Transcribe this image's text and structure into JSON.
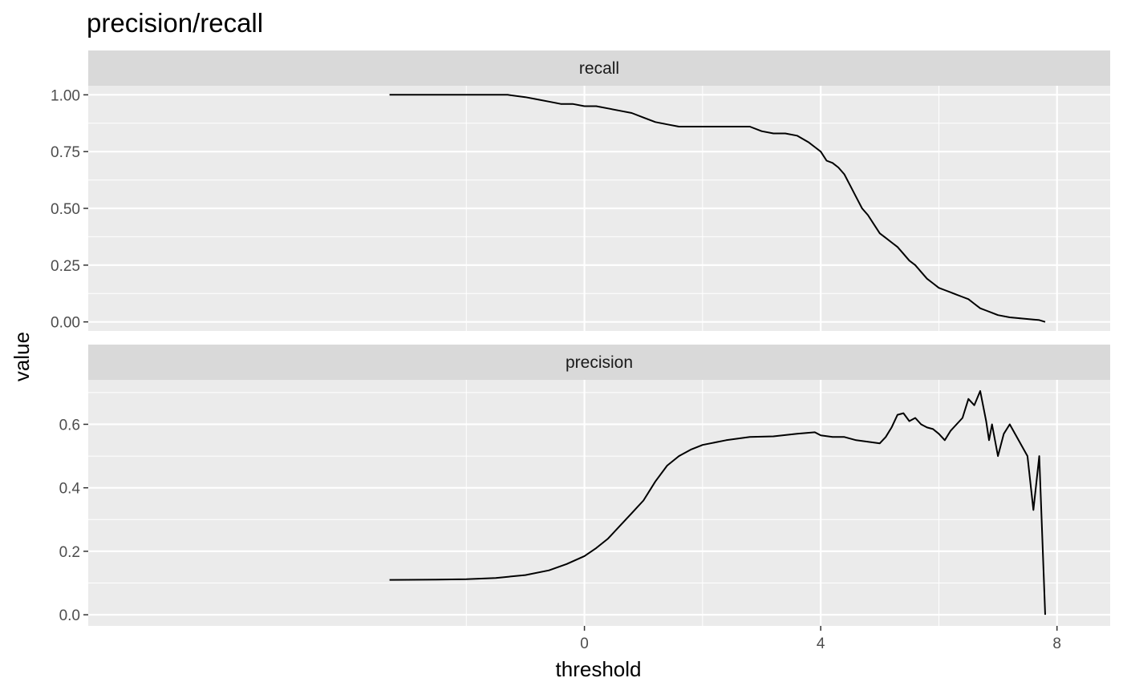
{
  "chart_data": {
    "type": "line",
    "title": "precision/recall",
    "xlabel": "threshold",
    "ylabel": "value",
    "xlim": [
      -8.4,
      8.9
    ],
    "x_ticks": [
      0,
      4,
      8
    ],
    "x_tick_labels": [
      "0",
      "4",
      "8"
    ],
    "x_minor_ticks": [
      -2,
      2,
      6
    ],
    "grid": true,
    "facets": [
      {
        "strip": "recall",
        "ylim": [
          -0.04,
          1.04
        ],
        "y_ticks": [
          0.0,
          0.25,
          0.5,
          0.75,
          1.0
        ],
        "y_tick_labels": [
          "0.00",
          "0.25",
          "0.50",
          "0.75",
          "1.00"
        ],
        "y_minor_ticks": [
          0.125,
          0.375,
          0.625,
          0.875
        ],
        "x": [
          -3.3,
          -1.3,
          -1.0,
          -0.8,
          -0.6,
          -0.4,
          -0.2,
          0.0,
          0.2,
          0.4,
          0.6,
          0.8,
          1.0,
          1.2,
          1.4,
          1.6,
          2.0,
          2.4,
          2.8,
          3.0,
          3.2,
          3.4,
          3.6,
          3.8,
          3.9,
          4.0,
          4.1,
          4.2,
          4.3,
          4.4,
          4.5,
          4.6,
          4.7,
          4.8,
          4.9,
          5.0,
          5.1,
          5.2,
          5.3,
          5.4,
          5.5,
          5.6,
          5.7,
          5.8,
          5.9,
          6.0,
          6.1,
          6.2,
          6.3,
          6.4,
          6.5,
          6.6,
          6.7,
          6.8,
          6.9,
          7.0,
          7.2,
          7.4,
          7.6,
          7.7,
          7.8
        ],
        "y": [
          1.0,
          1.0,
          0.99,
          0.98,
          0.97,
          0.96,
          0.96,
          0.95,
          0.95,
          0.94,
          0.93,
          0.92,
          0.9,
          0.88,
          0.87,
          0.86,
          0.86,
          0.86,
          0.86,
          0.84,
          0.83,
          0.83,
          0.82,
          0.79,
          0.77,
          0.75,
          0.71,
          0.7,
          0.68,
          0.65,
          0.6,
          0.55,
          0.5,
          0.47,
          0.43,
          0.39,
          0.37,
          0.35,
          0.33,
          0.3,
          0.27,
          0.25,
          0.22,
          0.19,
          0.17,
          0.15,
          0.14,
          0.13,
          0.12,
          0.11,
          0.1,
          0.08,
          0.06,
          0.05,
          0.04,
          0.03,
          0.02,
          0.015,
          0.01,
          0.008,
          0.0
        ]
      },
      {
        "strip": "precision",
        "ylim": [
          -0.035,
          0.74
        ],
        "y_ticks": [
          0.0,
          0.2,
          0.4,
          0.6
        ],
        "y_tick_labels": [
          "0.0",
          "0.2",
          "0.4",
          "0.6"
        ],
        "y_minor_ticks": [
          0.1,
          0.3,
          0.5,
          0.7
        ],
        "x": [
          -3.3,
          -2.5,
          -2.0,
          -1.5,
          -1.0,
          -0.6,
          -0.3,
          0.0,
          0.2,
          0.4,
          0.6,
          0.8,
          1.0,
          1.2,
          1.4,
          1.6,
          1.8,
          2.0,
          2.4,
          2.8,
          3.2,
          3.6,
          3.9,
          4.0,
          4.2,
          4.4,
          4.6,
          4.8,
          5.0,
          5.1,
          5.2,
          5.3,
          5.4,
          5.5,
          5.6,
          5.7,
          5.8,
          5.9,
          6.0,
          6.1,
          6.2,
          6.3,
          6.4,
          6.5,
          6.6,
          6.7,
          6.8,
          6.85,
          6.9,
          7.0,
          7.1,
          7.2,
          7.5,
          7.6,
          7.7,
          7.8
        ],
        "y": [
          0.11,
          0.111,
          0.112,
          0.116,
          0.125,
          0.14,
          0.16,
          0.185,
          0.21,
          0.24,
          0.28,
          0.32,
          0.36,
          0.42,
          0.47,
          0.5,
          0.52,
          0.535,
          0.55,
          0.56,
          0.562,
          0.57,
          0.575,
          0.565,
          0.56,
          0.56,
          0.55,
          0.545,
          0.54,
          0.56,
          0.59,
          0.63,
          0.635,
          0.61,
          0.62,
          0.6,
          0.59,
          0.585,
          0.57,
          0.55,
          0.58,
          0.6,
          0.62,
          0.68,
          0.66,
          0.705,
          0.61,
          0.55,
          0.6,
          0.5,
          0.57,
          0.6,
          0.5,
          0.33,
          0.5,
          0.0
        ]
      }
    ]
  }
}
